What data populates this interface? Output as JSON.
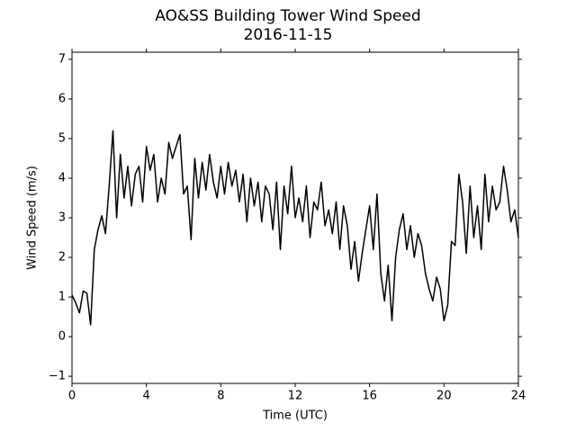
{
  "chart_data": {
    "type": "line",
    "title": "AO&SS Building Tower Wind Speed",
    "subtitle": "2016-11-15",
    "x_label": "Time (UTC)",
    "y_label": "Wind Speed (m/s)",
    "xlim": [
      0,
      24
    ],
    "xticks": [
      0,
      4,
      8,
      12,
      16,
      20,
      24
    ],
    "ylim": [
      -1.18,
      7.18
    ],
    "yticks": [
      {
        "value": -1,
        "label": "−1"
      },
      0,
      1,
      2,
      3,
      4,
      5,
      6,
      7
    ],
    "grid": false,
    "x": [
      0,
      0.2,
      0.4,
      0.6,
      0.8,
      1,
      1.2,
      1.4,
      1.6,
      1.8,
      2,
      2.2,
      2.4,
      2.6,
      2.8,
      3,
      3.2,
      3.4,
      3.6,
      3.8,
      4,
      4.2,
      4.4,
      4.6,
      4.8,
      5,
      5.2,
      5.4,
      5.6,
      5.8,
      6,
      6.2,
      6.4,
      6.6,
      6.8,
      7,
      7.2,
      7.4,
      7.6,
      7.8,
      8,
      8.2,
      8.4,
      8.6,
      8.8,
      9,
      9.2,
      9.4,
      9.6,
      9.8,
      10,
      10.2,
      10.4,
      10.6,
      10.8,
      11,
      11.2,
      11.4,
      11.6,
      11.8,
      12,
      12.2,
      12.4,
      12.6,
      12.8,
      13,
      13.2,
      13.4,
      13.6,
      13.8,
      14,
      14.2,
      14.4,
      14.6,
      14.8,
      15,
      15.2,
      15.4,
      15.6,
      15.8,
      16,
      16.2,
      16.4,
      16.6,
      16.8,
      17,
      17.2,
      17.4,
      17.6,
      17.8,
      18,
      18.2,
      18.4,
      18.6,
      18.8,
      19,
      19.2,
      19.4,
      19.6,
      19.8,
      20,
      20.2,
      20.4,
      20.6,
      20.8,
      21,
      21.2,
      21.4,
      21.6,
      21.8,
      22,
      22.2,
      22.4,
      22.6,
      22.8,
      23,
      23.2,
      23.4,
      23.6,
      23.8,
      24
    ],
    "series": [
      {
        "color": "#000000",
        "values": [
          1.05,
          0.85,
          0.6,
          1.15,
          1.1,
          0.3,
          2.2,
          2.7,
          3.05,
          2.6,
          3.8,
          5.2,
          3.0,
          4.6,
          3.5,
          4.3,
          3.3,
          4.1,
          4.3,
          3.4,
          4.8,
          4.2,
          4.6,
          3.4,
          4.0,
          3.6,
          4.9,
          4.5,
          4.8,
          5.1,
          3.6,
          3.8,
          2.45,
          4.5,
          3.5,
          4.4,
          3.7,
          4.6,
          3.9,
          3.5,
          4.3,
          3.6,
          4.4,
          3.8,
          4.2,
          3.4,
          4.1,
          2.9,
          4.0,
          3.3,
          3.9,
          2.9,
          3.8,
          3.6,
          2.7,
          3.9,
          2.2,
          3.8,
          3.1,
          4.3,
          3.0,
          3.5,
          2.9,
          3.8,
          2.5,
          3.4,
          3.2,
          3.9,
          2.8,
          3.2,
          2.6,
          3.4,
          2.2,
          3.3,
          2.8,
          1.7,
          2.4,
          1.4,
          2.1,
          2.7,
          3.3,
          2.2,
          3.6,
          1.6,
          0.9,
          1.8,
          0.4,
          2.0,
          2.7,
          3.1,
          2.2,
          2.8,
          2.0,
          2.6,
          2.3,
          1.6,
          1.2,
          0.9,
          1.5,
          1.2,
          0.4,
          0.8,
          2.4,
          2.3,
          4.1,
          3.4,
          2.1,
          3.8,
          2.5,
          3.3,
          2.2,
          4.1,
          2.9,
          3.8,
          3.2,
          3.4,
          4.3,
          3.7,
          2.9,
          3.2,
          2.5
        ]
      }
    ]
  }
}
